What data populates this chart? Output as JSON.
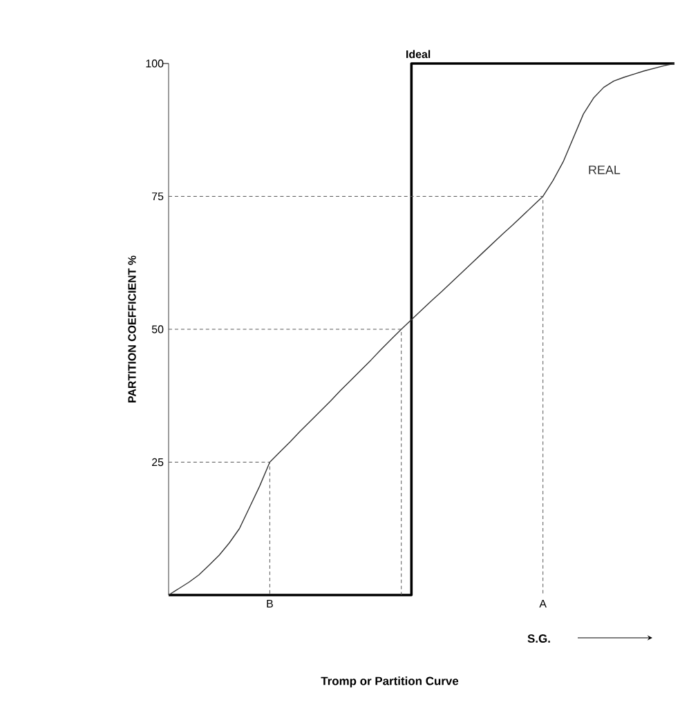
{
  "chart_data": {
    "type": "line",
    "title": "Tromp or Partition Curve",
    "xlabel": "S.G.",
    "ylabel": "PARTITION COEFFICIENT %",
    "categories": [
      null,
      null,
      null,
      null,
      null,
      null,
      null,
      null,
      null,
      null,
      "B",
      null,
      null,
      null,
      null,
      null,
      null,
      null,
      null,
      null,
      null,
      null,
      null,
      null,
      null,
      null,
      null,
      null,
      null,
      null,
      null,
      null,
      null,
      null,
      null,
      null,
      null,
      "A",
      null,
      null,
      null,
      null,
      null,
      null,
      null,
      null,
      null,
      null,
      null,
      null,
      null
    ],
    "ylim": [
      0,
      100
    ],
    "yticks": [
      25,
      50,
      75,
      100
    ],
    "grid": false,
    "series": [
      {
        "name": "Ideal",
        "type": "step",
        "color": "#000000",
        "values": [
          0,
          0,
          0,
          0,
          0,
          0,
          0,
          0,
          0,
          0,
          0,
          0,
          0,
          0,
          0,
          0,
          0,
          0,
          0,
          0,
          0,
          0,
          0,
          0,
          100,
          100,
          100,
          100,
          100,
          100,
          100,
          100,
          100,
          100,
          100,
          100,
          100,
          100,
          100,
          100,
          100,
          100,
          100,
          100,
          100,
          100,
          100,
          100,
          100,
          100,
          100
        ]
      },
      {
        "name": "REAL",
        "color": "#333333",
        "values": [
          0,
          1.2,
          2.4,
          3.8,
          5.6,
          7.5,
          9.8,
          12.5,
          16.5,
          20.5,
          25,
          26.9,
          28.8,
          30.8,
          32.7,
          34.6,
          36.5,
          38.5,
          40.4,
          42.3,
          44.2,
          46.2,
          48.1,
          50,
          51.8,
          53.6,
          55.4,
          57.1,
          58.9,
          60.7,
          62.5,
          64.3,
          66.1,
          67.9,
          69.6,
          71.4,
          73.2,
          75,
          78,
          81.5,
          86,
          90.5,
          93.5,
          95.5,
          96.7,
          97.4,
          98,
          98.6,
          99.1,
          99.6,
          100
        ]
      }
    ],
    "ref_lines": [
      {
        "axis": "y",
        "value": 25,
        "color": "#555555",
        "line_style": "dashed"
      },
      {
        "axis": "y",
        "value": 50,
        "color": "#555555",
        "line_style": "dashed"
      },
      {
        "axis": "y",
        "value": 75,
        "color": "#555555",
        "line_style": "dashed"
      }
    ]
  }
}
